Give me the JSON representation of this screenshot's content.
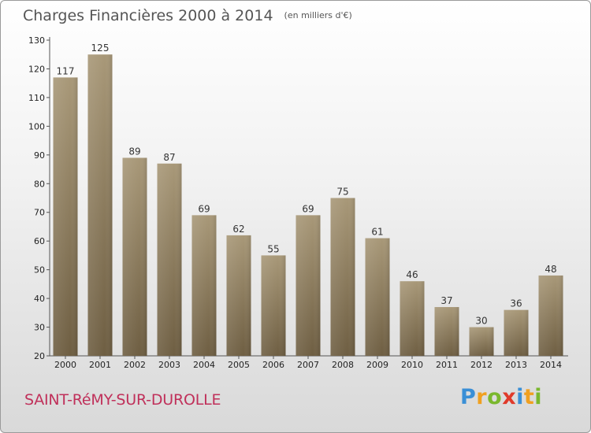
{
  "header": {
    "title": "Charges Financières 2000 à 2014",
    "unit": "(en milliers d'€)"
  },
  "footer": {
    "commune": "SAINT-RéMY-SUR-DUROLLE"
  },
  "logo": {
    "text": "Proxiti",
    "letters": [
      "P",
      "r",
      "o",
      "x",
      "i",
      "t",
      "i"
    ],
    "colors": [
      "#3a8fd6",
      "#f0a020",
      "#7ab82e",
      "#e03a2a",
      "#3a8fd6",
      "#f0a020",
      "#7ab82e"
    ]
  },
  "colors": {
    "bar_top": "#a89878",
    "bar_bottom": "#6e5e42",
    "commune_text": "#c0305a"
  },
  "chart_data": {
    "type": "bar",
    "title": "Charges Financières 2000 à 2014",
    "subtitle": "(en milliers d'€)",
    "categories": [
      "2000",
      "2001",
      "2002",
      "2003",
      "2004",
      "2005",
      "2006",
      "2007",
      "2008",
      "2009",
      "2010",
      "2011",
      "2012",
      "2013",
      "2014"
    ],
    "values": [
      117,
      125,
      89,
      87,
      69,
      62,
      55,
      69,
      75,
      61,
      46,
      37,
      30,
      36,
      48
    ],
    "ylim": [
      20,
      130
    ],
    "yticks": [
      20,
      30,
      40,
      50,
      60,
      70,
      80,
      90,
      100,
      110,
      120,
      130
    ],
    "grid": false,
    "legend": "none"
  }
}
